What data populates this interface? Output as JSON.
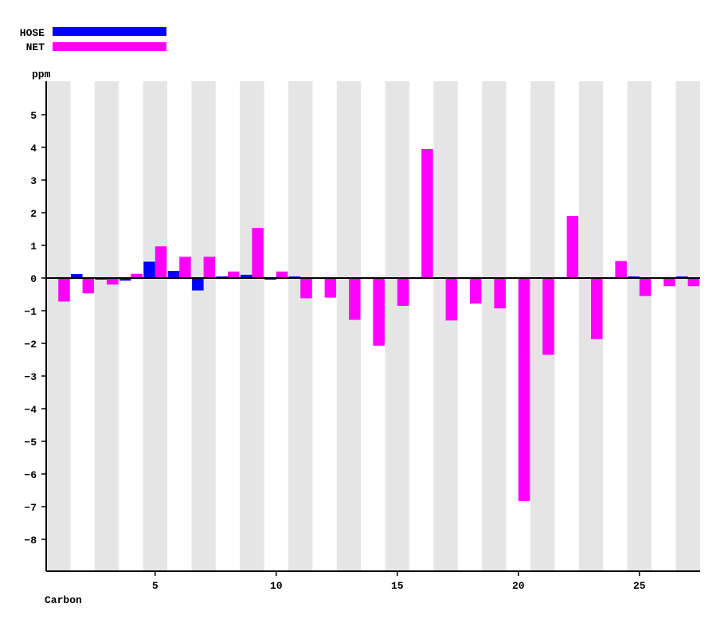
{
  "chart_data": {
    "type": "bar",
    "xlabel": "Carbon",
    "ylabel": "ppm",
    "ylim": [
      -9,
      6
    ],
    "yticks": [
      5,
      4,
      3,
      2,
      1,
      0,
      -1,
      -2,
      -3,
      -4,
      -5,
      -6,
      -7,
      -8
    ],
    "ytick_labels": [
      "5",
      "4",
      "3",
      "2",
      "1",
      "0",
      "−1",
      "−2",
      "−3",
      "−4",
      "−5",
      "−6",
      "−7",
      "−8"
    ],
    "xticks": [
      5,
      10,
      15,
      20,
      25
    ],
    "xtick_labels": [
      "5",
      "10",
      "15",
      "20",
      "25"
    ],
    "x": [
      1,
      2,
      3,
      4,
      5,
      6,
      7,
      8,
      9,
      10,
      11,
      12,
      13,
      14,
      15,
      16,
      17,
      18,
      19,
      20,
      21,
      22,
      23,
      24,
      25,
      26,
      27
    ],
    "legend_position": "top-left",
    "grid": "alternating vertical bands",
    "series": [
      {
        "name": "HOSE",
        "color": "#0000ff",
        "values": [
          0,
          0.12,
          -0.03,
          -0.08,
          0.5,
          0.22,
          -0.38,
          0.05,
          0.1,
          -0.03,
          0.03,
          0,
          0,
          0,
          0,
          0,
          0,
          0,
          0,
          0,
          0,
          0,
          0,
          0,
          0.04,
          0,
          0.04
        ]
      },
      {
        "name": "NET",
        "color": "#ff00ff",
        "values": [
          -0.72,
          -0.47,
          -0.2,
          0.13,
          0.97,
          0.65,
          0.65,
          0.2,
          1.53,
          0.2,
          -0.62,
          -0.6,
          -1.28,
          -2.07,
          -0.85,
          3.95,
          -1.3,
          -0.78,
          -0.93,
          -6.83,
          -2.35,
          1.9,
          -1.87,
          0.52,
          -0.55,
          -0.25,
          -0.25
        ]
      }
    ]
  }
}
